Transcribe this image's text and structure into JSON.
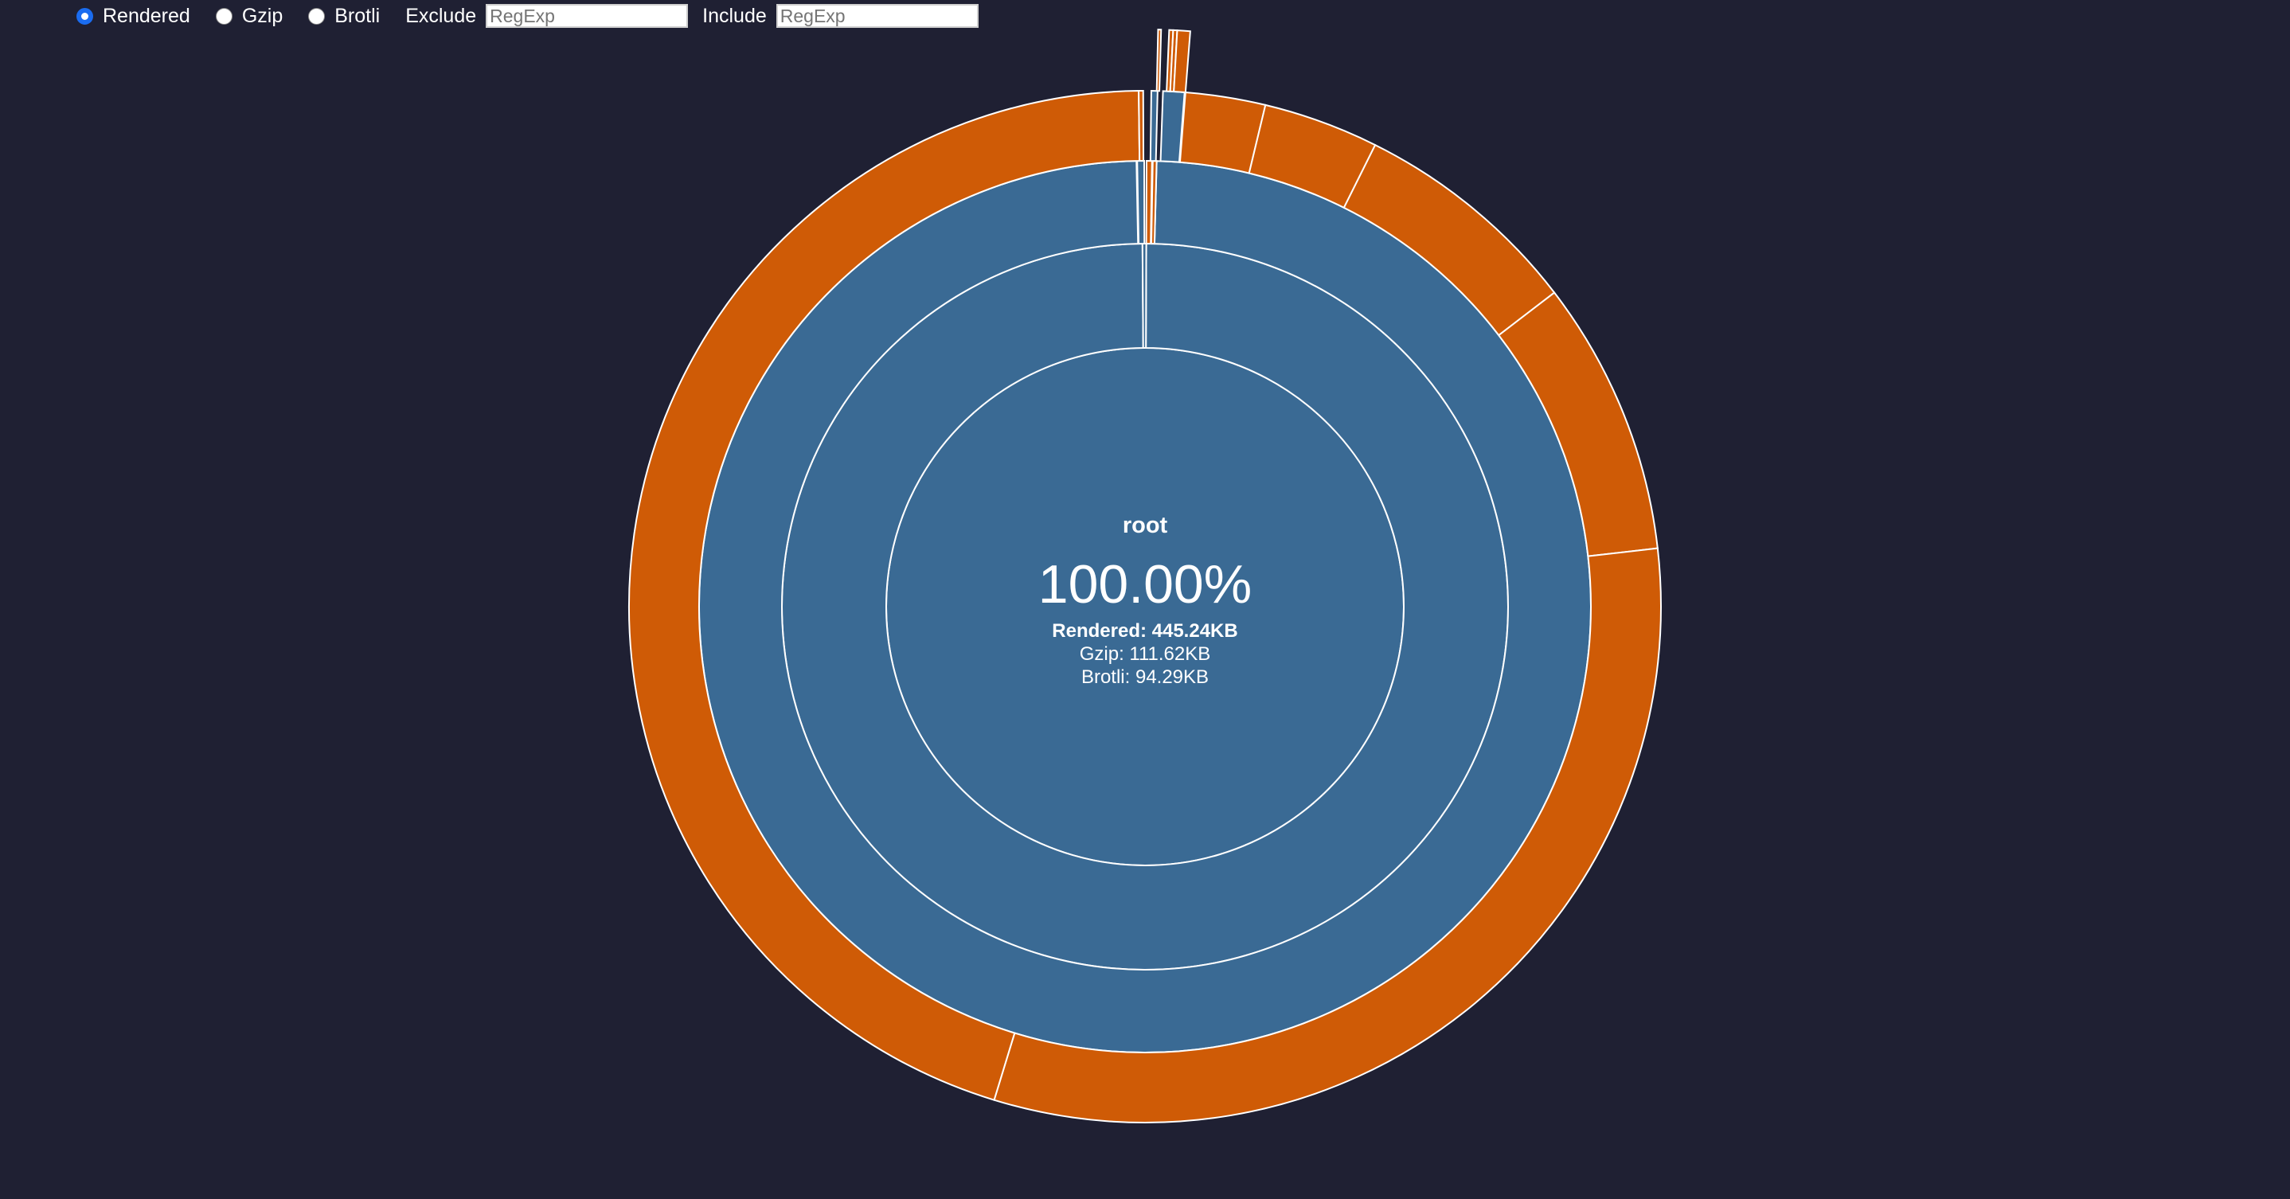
{
  "controls": {
    "size_options": [
      {
        "label": "Rendered",
        "checked": true
      },
      {
        "label": "Gzip",
        "checked": false
      },
      {
        "label": "Brotli",
        "checked": false
      }
    ],
    "exclude_label": "Exclude",
    "exclude_placeholder": "RegExp",
    "include_label": "Include",
    "include_placeholder": "RegExp"
  },
  "colors": {
    "background": "#1f2033",
    "folder_segment": "#3a6a94",
    "file_segment": "#cf5b06",
    "segment_border": "#ffffff",
    "radio_accent": "#1a6cf0"
  },
  "center": {
    "name": "root",
    "percent": "100.00%",
    "rendered": "Rendered: 445.24KB",
    "gzip": "Gzip: 111.62KB",
    "brotli": "Brotli: 94.29KB"
  }
}
